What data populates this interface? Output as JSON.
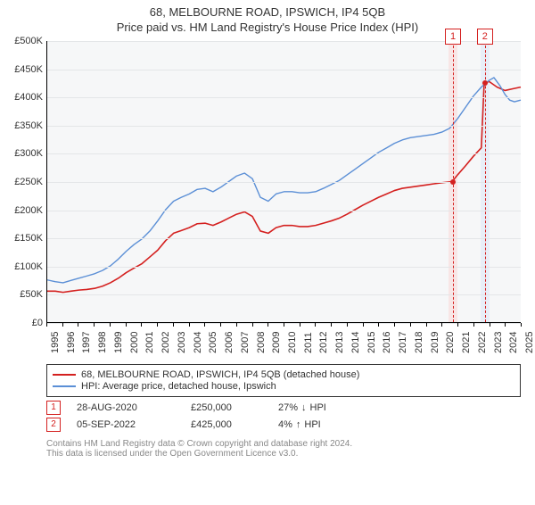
{
  "title_line1": "68, MELBOURNE ROAD, IPSWICH, IP4 5QB",
  "title_line2": "Price paid vs. HM Land Registry's House Price Index (HPI)",
  "chart": {
    "type": "line",
    "background_color": "#f6f7f8",
    "grid_color": "#e4e6e8",
    "axis_color": "#000000",
    "tick_fontsize": 11,
    "y": {
      "min": 0,
      "max": 500000,
      "step": 50000,
      "labels": [
        "£0",
        "£50K",
        "£100K",
        "£150K",
        "£200K",
        "£250K",
        "£300K",
        "£350K",
        "£400K",
        "£450K",
        "£500K"
      ]
    },
    "x": {
      "min": 1995,
      "max": 2025,
      "step": 1,
      "labels": [
        "1995",
        "1996",
        "1997",
        "1998",
        "1999",
        "2000",
        "2001",
        "2002",
        "2003",
        "2004",
        "2005",
        "2006",
        "2007",
        "2008",
        "2009",
        "2010",
        "2011",
        "2012",
        "2013",
        "2014",
        "2015",
        "2016",
        "2017",
        "2018",
        "2019",
        "2020",
        "2021",
        "2022",
        "2023",
        "2024",
        "2025"
      ]
    },
    "series": [
      {
        "id": "property",
        "label": "68, MELBOURNE ROAD, IPSWICH, IP4 5QB (detached house)",
        "color": "#d4201f",
        "line_width": 1.6,
        "data": [
          [
            1995,
            55000
          ],
          [
            1995.5,
            55000
          ],
          [
            1996,
            53000
          ],
          [
            1996.5,
            55000
          ],
          [
            1997,
            57000
          ],
          [
            1997.5,
            58000
          ],
          [
            1998,
            60000
          ],
          [
            1998.5,
            64000
          ],
          [
            1999,
            70000
          ],
          [
            1999.5,
            78000
          ],
          [
            2000,
            88000
          ],
          [
            2000.5,
            96000
          ],
          [
            2001,
            104000
          ],
          [
            2001.5,
            116000
          ],
          [
            2002,
            128000
          ],
          [
            2002.5,
            145000
          ],
          [
            2003,
            158000
          ],
          [
            2003.5,
            163000
          ],
          [
            2004,
            168000
          ],
          [
            2004.5,
            175000
          ],
          [
            2005,
            176000
          ],
          [
            2005.5,
            172000
          ],
          [
            2006,
            178000
          ],
          [
            2006.5,
            185000
          ],
          [
            2007,
            192000
          ],
          [
            2007.5,
            196000
          ],
          [
            2008,
            188000
          ],
          [
            2008.5,
            162000
          ],
          [
            2009,
            158000
          ],
          [
            2009.5,
            168000
          ],
          [
            2010,
            172000
          ],
          [
            2010.5,
            172000
          ],
          [
            2011,
            170000
          ],
          [
            2011.5,
            170000
          ],
          [
            2012,
            172000
          ],
          [
            2012.5,
            176000
          ],
          [
            2013,
            180000
          ],
          [
            2013.5,
            185000
          ],
          [
            2014,
            192000
          ],
          [
            2014.5,
            200000
          ],
          [
            2015,
            208000
          ],
          [
            2015.5,
            215000
          ],
          [
            2016,
            222000
          ],
          [
            2016.5,
            228000
          ],
          [
            2017,
            234000
          ],
          [
            2017.5,
            238000
          ],
          [
            2018,
            240000
          ],
          [
            2018.5,
            242000
          ],
          [
            2019,
            244000
          ],
          [
            2019.5,
            246000
          ],
          [
            2020,
            248000
          ],
          [
            2020.66,
            250000
          ],
          [
            2021,
            262000
          ],
          [
            2021.5,
            278000
          ],
          [
            2022,
            295000
          ],
          [
            2022.5,
            310000
          ],
          [
            2022.68,
            425000
          ],
          [
            2023,
            428000
          ],
          [
            2023.5,
            418000
          ],
          [
            2024,
            412000
          ],
          [
            2024.5,
            415000
          ],
          [
            2025,
            418000
          ]
        ]
      },
      {
        "id": "hpi",
        "label": "HPI: Average price, detached house, Ipswich",
        "color": "#5b8fd6",
        "line_width": 1.4,
        "data": [
          [
            1995,
            75000
          ],
          [
            1995.5,
            72000
          ],
          [
            1996,
            70000
          ],
          [
            1996.5,
            74000
          ],
          [
            1997,
            78000
          ],
          [
            1997.5,
            82000
          ],
          [
            1998,
            86000
          ],
          [
            1998.5,
            92000
          ],
          [
            1999,
            100000
          ],
          [
            1999.5,
            112000
          ],
          [
            2000,
            126000
          ],
          [
            2000.5,
            138000
          ],
          [
            2001,
            148000
          ],
          [
            2001.5,
            162000
          ],
          [
            2002,
            180000
          ],
          [
            2002.5,
            200000
          ],
          [
            2003,
            215000
          ],
          [
            2003.5,
            222000
          ],
          [
            2004,
            228000
          ],
          [
            2004.5,
            236000
          ],
          [
            2005,
            238000
          ],
          [
            2005.5,
            232000
          ],
          [
            2006,
            240000
          ],
          [
            2006.5,
            250000
          ],
          [
            2007,
            260000
          ],
          [
            2007.5,
            265000
          ],
          [
            2008,
            255000
          ],
          [
            2008.5,
            222000
          ],
          [
            2009,
            215000
          ],
          [
            2009.5,
            228000
          ],
          [
            2010,
            232000
          ],
          [
            2010.5,
            232000
          ],
          [
            2011,
            230000
          ],
          [
            2011.5,
            230000
          ],
          [
            2012,
            232000
          ],
          [
            2012.5,
            238000
          ],
          [
            2013,
            245000
          ],
          [
            2013.5,
            252000
          ],
          [
            2014,
            262000
          ],
          [
            2014.5,
            272000
          ],
          [
            2015,
            282000
          ],
          [
            2015.5,
            292000
          ],
          [
            2016,
            302000
          ],
          [
            2016.5,
            310000
          ],
          [
            2017,
            318000
          ],
          [
            2017.5,
            324000
          ],
          [
            2018,
            328000
          ],
          [
            2018.5,
            330000
          ],
          [
            2019,
            332000
          ],
          [
            2019.5,
            334000
          ],
          [
            2020,
            338000
          ],
          [
            2020.5,
            345000
          ],
          [
            2021,
            362000
          ],
          [
            2021.5,
            382000
          ],
          [
            2022,
            402000
          ],
          [
            2022.5,
            418000
          ],
          [
            2023,
            430000
          ],
          [
            2023.3,
            435000
          ],
          [
            2023.7,
            420000
          ],
          [
            2024,
            405000
          ],
          [
            2024.3,
            395000
          ],
          [
            2024.6,
            392000
          ],
          [
            2025,
            395000
          ]
        ]
      }
    ],
    "sale_markers": [
      {
        "n": 1,
        "year": 2020.66,
        "price": 250000,
        "color": "#d4201f",
        "band_color": "#f8e6e6"
      },
      {
        "n": 2,
        "year": 2022.68,
        "price": 425000,
        "color": "#d4201f",
        "band_color": "#e8eef8"
      }
    ],
    "marker_label_y_offset": -14
  },
  "sales_table": [
    {
      "n": 1,
      "date": "28-AUG-2020",
      "price": "£250,000",
      "hpi_pct": "27%",
      "hpi_dir": "down",
      "hpi_text": "HPI"
    },
    {
      "n": 2,
      "date": "05-SEP-2022",
      "price": "£425,000",
      "hpi_pct": "4%",
      "hpi_dir": "up",
      "hpi_text": "HPI"
    }
  ],
  "footer_line1": "Contains HM Land Registry data © Crown copyright and database right 2024.",
  "footer_line2": "This data is licensed under the Open Government Licence v3.0.",
  "colors": {
    "property": "#d4201f",
    "hpi": "#5b8fd6",
    "footer_text": "#888888"
  },
  "arrow_glyph": {
    "up": "↑",
    "down": "↓"
  }
}
